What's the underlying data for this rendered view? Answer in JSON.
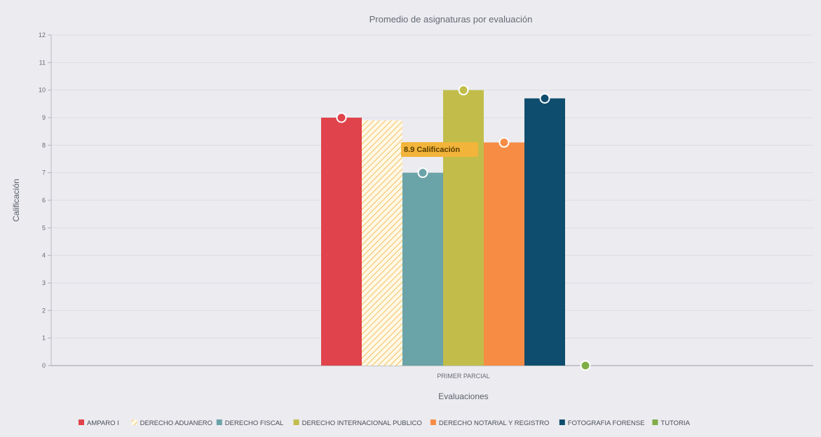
{
  "chart_data": {
    "type": "bar",
    "title": "Promedio de asignaturas por evaluación",
    "xlabel": "Evaluaciones",
    "ylabel": "Calificación",
    "categories": [
      "PRIMER PARCIAL"
    ],
    "ylim": [
      0,
      12
    ],
    "yticks": [
      0,
      1,
      2,
      3,
      4,
      5,
      6,
      7,
      8,
      9,
      10,
      11,
      12
    ],
    "grid": true,
    "legend_position": "bottom",
    "series": [
      {
        "name": "AMPARO I",
        "values": [
          9.0
        ],
        "color": "#e0434b",
        "pattern": "solid"
      },
      {
        "name": "DERECHO ADUANERO",
        "values": [
          8.9
        ],
        "color": "#f6c56a",
        "pattern": "hatched"
      },
      {
        "name": "DERECHO FISCAL",
        "values": [
          7.0
        ],
        "color": "#6aa3a8",
        "pattern": "solid"
      },
      {
        "name": "DERECHO INTERNACIONAL PUBLICO",
        "values": [
          10.0
        ],
        "color": "#c2bd4a",
        "pattern": "solid"
      },
      {
        "name": "DERECHO NOTARIAL Y REGISTRO",
        "values": [
          8.1
        ],
        "color": "#f78c45",
        "pattern": "solid"
      },
      {
        "name": "FOTOGRAFIA FORENSE",
        "values": [
          9.7
        ],
        "color": "#0e4d6d",
        "pattern": "solid"
      },
      {
        "name": "TUTORIA",
        "values": [
          0
        ],
        "color": "#7fae46",
        "pattern": "solid"
      }
    ],
    "tooltip": {
      "text": "8.9 Calificación",
      "series": "DERECHO ADUANERO",
      "color": "#f2b43a"
    }
  }
}
